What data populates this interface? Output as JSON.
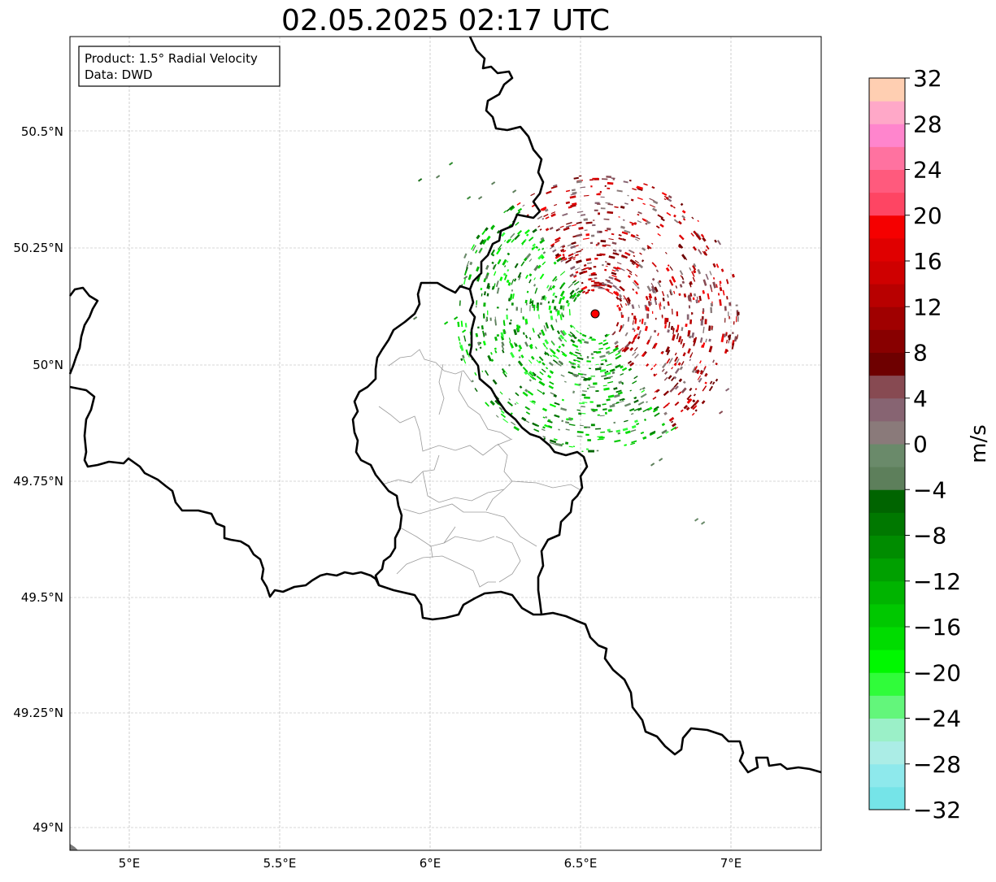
{
  "title": "02.05.2025 02:17 UTC",
  "info_box": {
    "product": "Product: 1.5° Radial Velocity",
    "data": "Data: DWD"
  },
  "lat_ticks": [
    "50.5°N",
    "50.25°N",
    "50°N",
    "49.75°N",
    "49.5°N",
    "49.25°N",
    "49°N"
  ],
  "lon_ticks": [
    "5°E",
    "5.5°E",
    "6°E",
    "6.5°E",
    "7°E"
  ],
  "colorbar": {
    "unit": "m/s",
    "ticks": [
      "32",
      "28",
      "24",
      "20",
      "16",
      "12",
      "8",
      "4",
      "0",
      "−4",
      "−8",
      "−12",
      "−16",
      "−20",
      "−24",
      "−28",
      "−32"
    ],
    "colors": [
      "#75e4e8",
      "#8ee9ec",
      "#abede6",
      "#9bf0c8",
      "#63f67b",
      "#30fc3a",
      "#00f800",
      "#00dc00",
      "#00c800",
      "#00b400",
      "#00a000",
      "#008c00",
      "#007800",
      "#006400",
      "#5d7f5b",
      "#6a8a6a",
      "#8a7a7a",
      "#876472",
      "#874a52",
      "#6e0000",
      "#880000",
      "#a00000",
      "#b80000",
      "#cf0000",
      "#e00000",
      "#f50000",
      "#fe4563",
      "#ff5a7d",
      "#ff72a0",
      "#ff85cd",
      "#ffa8c8",
      "#ffcfb2"
    ]
  },
  "radar_site": {
    "lon": 6.547,
    "lat": 50.11,
    "color": "#ff0000"
  }
}
